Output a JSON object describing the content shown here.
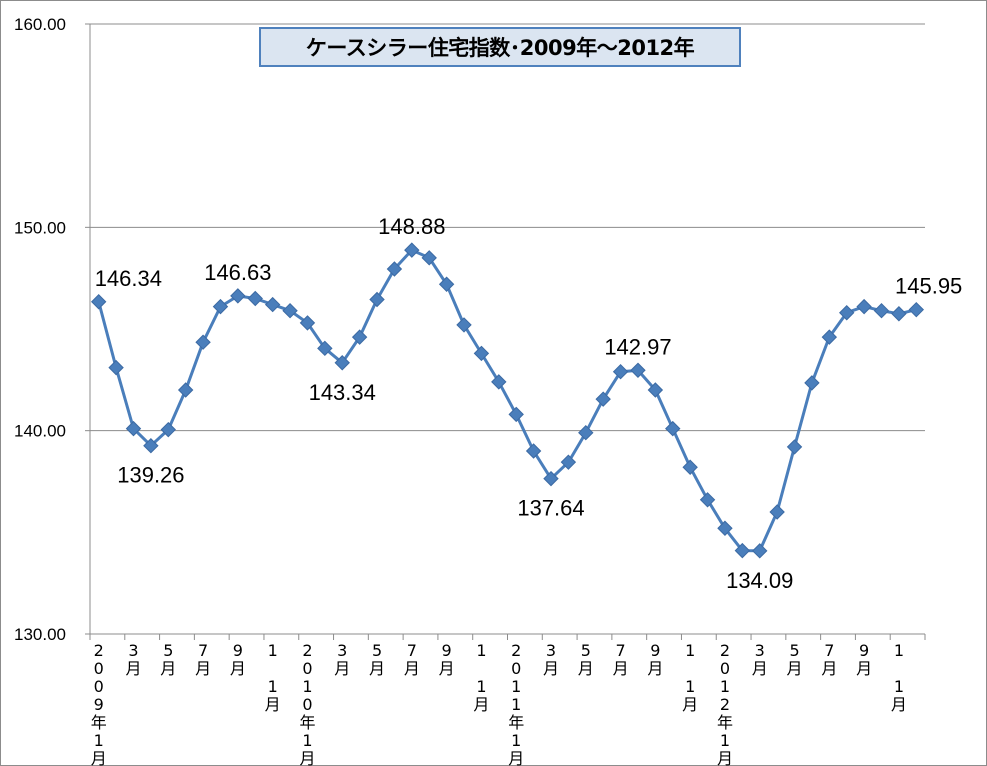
{
  "chart_data": {
    "type": "line",
    "title": "ケースシラー住宅指数･2009年～2012年",
    "ylim": [
      130,
      160
    ],
    "y_ticks": [
      "130.00",
      "140.00",
      "150.00",
      "160.00"
    ],
    "y_tick_values": [
      130,
      140,
      150,
      160
    ],
    "grid": "horizontal",
    "series_color": "#4a7ebb",
    "x_tick_labels": [
      "2009年1月",
      "3月",
      "5月",
      "7月",
      "9月",
      "1 1月",
      "2010年1月",
      "3月",
      "5月",
      "7月",
      "9月",
      "1 1月",
      "2011年1月",
      "3月",
      "5月",
      "7月",
      "9月",
      "1 1月",
      "2012年1月",
      "3月",
      "5月",
      "7月",
      "9月",
      "1 1月"
    ],
    "series": [
      {
        "values": [
          146.34,
          143.1,
          140.1,
          139.26,
          140.05,
          142.0,
          144.35,
          146.1,
          146.63,
          146.5,
          146.2,
          145.9,
          145.3,
          144.05,
          143.34,
          144.6,
          146.45,
          147.95,
          148.88,
          148.5,
          147.2,
          145.2,
          143.8,
          142.4,
          140.8,
          139.0,
          137.64,
          138.45,
          139.9,
          141.55,
          142.9,
          142.97,
          142.0,
          140.1,
          138.2,
          136.6,
          135.2,
          134.1,
          134.09,
          136.0,
          139.2,
          142.35,
          144.6,
          145.8,
          146.1,
          145.9,
          145.75,
          145.95
        ]
      }
    ],
    "data_labels": [
      {
        "index": 0,
        "text": "146.34",
        "position": "above"
      },
      {
        "index": 3,
        "text": "139.26",
        "position": "below"
      },
      {
        "index": 8,
        "text": "146.63",
        "position": "above"
      },
      {
        "index": 14,
        "text": "143.34",
        "position": "below"
      },
      {
        "index": 18,
        "text": "148.88",
        "position": "above"
      },
      {
        "index": 26,
        "text": "137.64",
        "position": "below"
      },
      {
        "index": 31,
        "text": "142.97",
        "position": "above"
      },
      {
        "index": 38,
        "text": "134.09",
        "position": "below"
      },
      {
        "index": 47,
        "text": "145.95",
        "position": "above"
      }
    ]
  }
}
